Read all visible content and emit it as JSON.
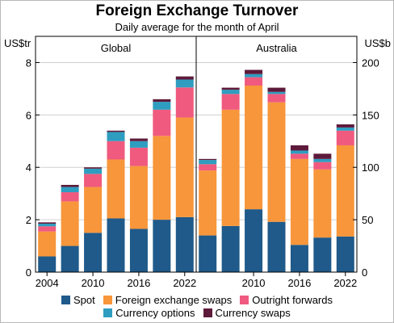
{
  "chart_data": {
    "type": "bar",
    "stacked": true,
    "title": "Foreign Exchange Turnover",
    "subtitle": "Daily average for the month of April",
    "colors": {
      "Spot": "#1f5a8a",
      "Foreign exchange swaps": "#f7963b",
      "Outright forwards": "#f05a7e",
      "Currency options": "#2e9dc0",
      "Currency swaps": "#5e1a3a"
    },
    "panels": [
      {
        "name": "Global",
        "unit": "US$tr",
        "ylim": [
          0,
          9
        ],
        "yticks": [
          0,
          2,
          4,
          6,
          8
        ],
        "categories": [
          "2004",
          "2007",
          "2010",
          "2013",
          "2016",
          "2019",
          "2022"
        ],
        "x_tick_labels": [
          "2004",
          "2010",
          "2016",
          "2022"
        ],
        "series": [
          {
            "name": "Spot",
            "values": [
              0.6,
              1.0,
              1.5,
              2.05,
              1.65,
              2.0,
              2.1
            ]
          },
          {
            "name": "Foreign exchange swaps",
            "values": [
              0.95,
              1.7,
              1.75,
              2.25,
              2.4,
              3.2,
              3.8
            ]
          },
          {
            "name": "Outright forwards",
            "values": [
              0.2,
              0.35,
              0.5,
              0.7,
              0.7,
              1.0,
              1.15
            ]
          },
          {
            "name": "Currency options",
            "values": [
              0.1,
              0.2,
              0.2,
              0.35,
              0.25,
              0.3,
              0.3
            ]
          },
          {
            "name": "Currency swaps",
            "values": [
              0.05,
              0.08,
              0.05,
              0.05,
              0.1,
              0.1,
              0.12
            ]
          }
        ]
      },
      {
        "name": "Australia",
        "unit": "US$b",
        "ylim": [
          0,
          225
        ],
        "yticks": [
          0,
          50,
          100,
          150,
          200
        ],
        "categories": [
          "2004",
          "2007",
          "2010",
          "2013",
          "2016",
          "2019",
          "2022"
        ],
        "x_tick_labels": [
          "2010",
          "2016",
          "2022"
        ],
        "series": [
          {
            "name": "Spot",
            "values": [
              35,
              44,
              60,
              48,
              26,
              33,
              34
            ]
          },
          {
            "name": "Foreign exchange swaps",
            "values": [
              62,
              111,
              118,
              114,
              82,
              65,
              87
            ]
          },
          {
            "name": "Outright forwards",
            "values": [
              6,
              15,
              8,
              8,
              5,
              7,
              14
            ]
          },
          {
            "name": "Currency options",
            "values": [
              4,
              4,
              3,
              2,
              3,
              3,
              3
            ]
          },
          {
            "name": "Currency swaps",
            "values": [
              1,
              2,
              4,
              4,
              5,
              5,
              3
            ]
          }
        ]
      }
    ]
  }
}
